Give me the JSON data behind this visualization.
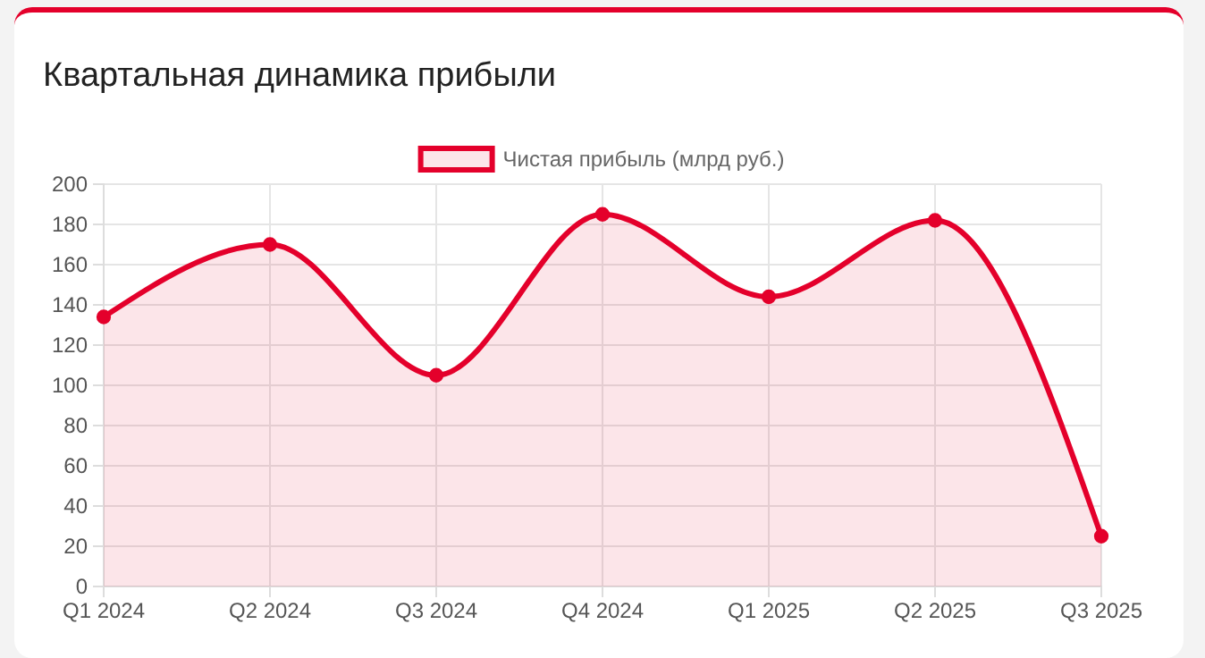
{
  "chart_data": {
    "type": "area",
    "title": "Квартальная динамика прибыли",
    "categories": [
      "Q1 2024",
      "Q2 2024",
      "Q3 2024",
      "Q4 2024",
      "Q1 2025",
      "Q2 2025",
      "Q3 2025"
    ],
    "series": [
      {
        "name": "Чистая прибыль (млрд руб.)",
        "color": "#e4002b",
        "values": [
          134,
          170,
          105,
          185,
          144,
          182,
          25
        ]
      }
    ],
    "ylim": [
      0,
      200
    ],
    "yticks": [
      0,
      20,
      40,
      60,
      80,
      100,
      120,
      140,
      160,
      180,
      200
    ],
    "grid": true,
    "legend": "top",
    "marker": "circle",
    "line_style": "solid"
  }
}
